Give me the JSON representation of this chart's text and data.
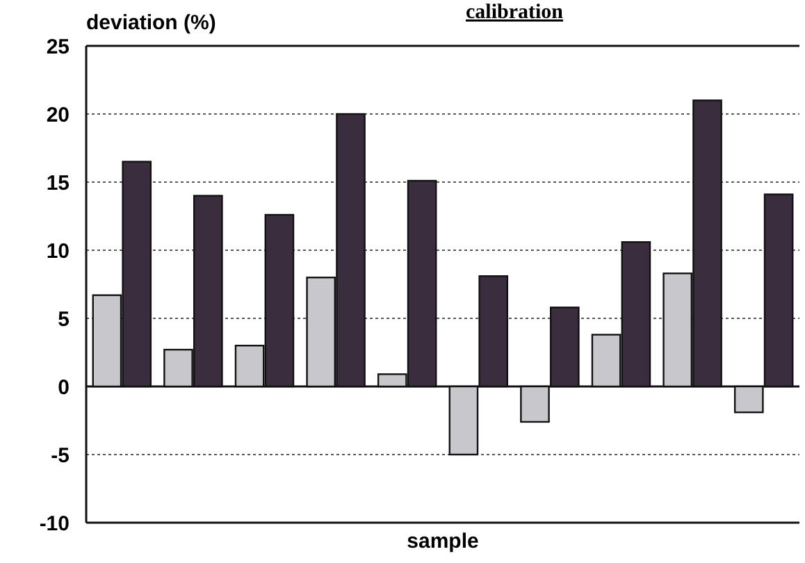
{
  "chart_data": {
    "type": "bar",
    "title": "calibration",
    "ylabel": "deviation (%)",
    "xlabel": "sample",
    "categories": [
      null,
      null,
      null,
      null,
      null,
      null,
      null,
      null,
      null,
      null
    ],
    "series": [
      {
        "color": "#c8c8cc",
        "values": [
          6.7,
          2.7,
          3.0,
          8.0,
          0.9,
          -5.0,
          -2.6,
          3.8,
          8.3,
          -1.9
        ]
      },
      {
        "color": "#3a2d3e",
        "values": [
          16.5,
          14.0,
          12.6,
          20.0,
          15.1,
          8.1,
          5.8,
          10.6,
          21.0,
          14.1
        ]
      }
    ],
    "ylim": [
      -10,
      25
    ],
    "yticks": [
      -10,
      -5,
      0,
      5,
      10,
      15,
      20,
      25
    ],
    "grid": "y"
  }
}
